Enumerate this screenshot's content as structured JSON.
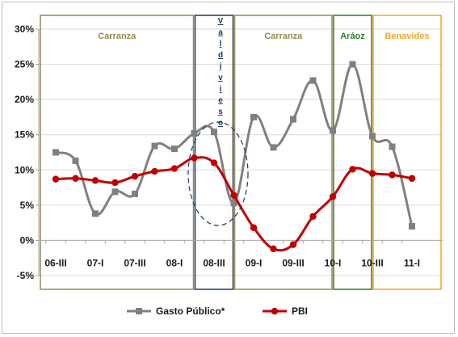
{
  "chart_data": {
    "type": "line",
    "categories": [
      "06-III",
      "",
      "07-I",
      "",
      "07-III",
      "",
      "08-I",
      "",
      "08-III",
      "",
      "09-I",
      "",
      "09-III",
      "",
      "10-I",
      "",
      "10-III",
      "",
      "11-I"
    ],
    "ylim": [
      -5,
      30
    ],
    "yticks": [
      "-5%",
      "0%",
      "5%",
      "10%",
      "15%",
      "20%",
      "25%",
      "30%"
    ],
    "ytick_values": [
      -5,
      0,
      5,
      10,
      15,
      20,
      25,
      30
    ],
    "grid": true,
    "legend_position": "bottom",
    "series": [
      {
        "name": "Gasto Público*",
        "color": "#808080",
        "marker": "square",
        "values": [
          12.5,
          11.3,
          3.8,
          6.9,
          6.6,
          13.4,
          13.0,
          15.2,
          15.4,
          5.3,
          17.5,
          13.2,
          17.2,
          22.7,
          15.6,
          25.0,
          14.8,
          13.3,
          2.0
        ]
      },
      {
        "name": "PBI",
        "color": "#c00000",
        "marker": "circle",
        "values": [
          8.7,
          8.8,
          8.5,
          8.2,
          9.1,
          9.8,
          10.2,
          11.7,
          11.0,
          6.4,
          1.8,
          -1.2,
          -0.6,
          3.4,
          6.2,
          10.1,
          9.5,
          9.3,
          8.8
        ]
      }
    ],
    "periods": [
      {
        "label": "Carranza",
        "start": 0,
        "end": 7,
        "color": "#948a54",
        "label_color": "#948a54",
        "vertical": false,
        "fill": false
      },
      {
        "label": "Valdivieso",
        "start": 7,
        "end": 9,
        "color": "#1f3864",
        "label_color": "#1f3864",
        "vertical": true,
        "fill": false
      },
      {
        "label": "Carranza",
        "start": 9,
        "end": 14,
        "color": "#948a54",
        "label_color": "#948a54",
        "vertical": false,
        "fill": false
      },
      {
        "label": "Aráoz",
        "start": 14,
        "end": 16,
        "color": "#2e7d32",
        "label_color": "#2e7d32",
        "vertical": false,
        "fill": false
      },
      {
        "label": "Benavides",
        "start": 16,
        "end": 18,
        "color": "#f5a623",
        "label_color": "#f5a623",
        "vertical": false,
        "fill": false
      }
    ]
  }
}
